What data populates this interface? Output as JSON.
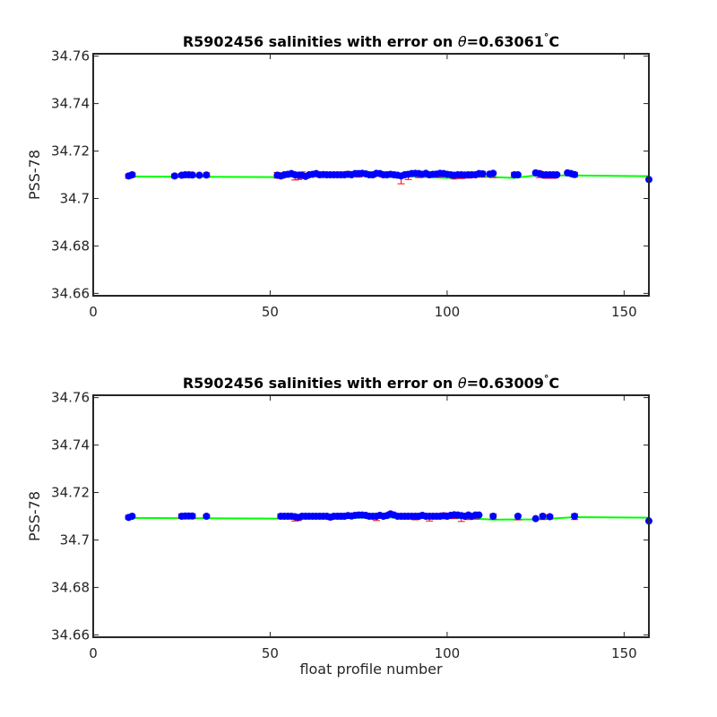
{
  "figure": {
    "xlabel": "float profile number",
    "ylabel": "PSS-78"
  },
  "colors": {
    "points": "#0000ff",
    "error_bars": "#ff0000",
    "trend_line": "#00ff00",
    "axes": "#262626"
  },
  "chart_data": [
    {
      "type": "scatter",
      "title_prefix": "R5902456 salinities with error on ",
      "theta_symbol": "θ",
      "theta_value": "=0.63061",
      "degree_symbol": "°",
      "unit": "C",
      "ylabel": "PSS-78",
      "xlabel": "",
      "xlim": [
        0,
        157
      ],
      "ylim": [
        34.659,
        34.761
      ],
      "xticks": [
        0,
        50,
        100,
        150
      ],
      "yticks": [
        34.66,
        34.68,
        34.7,
        34.72,
        34.74,
        34.76
      ],
      "ytick_labels": [
        "34.66",
        "34.68",
        "34.7",
        "34.72",
        "34.74",
        "34.76"
      ],
      "grid": false,
      "points": [
        [
          10,
          34.7095
        ],
        [
          11,
          34.71
        ],
        [
          23,
          34.7095
        ],
        [
          25,
          34.7098
        ],
        [
          26,
          34.71
        ],
        [
          27,
          34.71
        ],
        [
          28,
          34.7099
        ],
        [
          30,
          34.7098
        ],
        [
          32,
          34.7099
        ],
        [
          52,
          34.7098
        ],
        [
          53,
          34.7095
        ],
        [
          54,
          34.71
        ],
        [
          55,
          34.7102
        ],
        [
          56,
          34.7105
        ],
        [
          57,
          34.71
        ],
        [
          58,
          34.7098
        ],
        [
          59,
          34.7098
        ],
        [
          60,
          34.7093
        ],
        [
          61,
          34.71
        ],
        [
          62,
          34.7102
        ],
        [
          63,
          34.7105
        ],
        [
          64,
          34.71
        ],
        [
          65,
          34.7101
        ],
        [
          66,
          34.71
        ],
        [
          67,
          34.71
        ],
        [
          68,
          34.71
        ],
        [
          69,
          34.71
        ],
        [
          70,
          34.71
        ],
        [
          71,
          34.71
        ],
        [
          72,
          34.7102
        ],
        [
          73,
          34.71
        ],
        [
          74,
          34.7105
        ],
        [
          75,
          34.7105
        ],
        [
          76,
          34.7106
        ],
        [
          77,
          34.7104
        ],
        [
          78,
          34.71
        ],
        [
          79,
          34.71
        ],
        [
          80,
          34.7106
        ],
        [
          81,
          34.7105
        ],
        [
          82,
          34.71
        ],
        [
          83,
          34.71
        ],
        [
          84,
          34.7102
        ],
        [
          85,
          34.71
        ],
        [
          86,
          34.7098
        ],
        [
          87,
          34.7095
        ],
        [
          88,
          34.71
        ],
        [
          89,
          34.7102
        ],
        [
          90,
          34.7105
        ],
        [
          91,
          34.7106
        ],
        [
          92,
          34.7105
        ],
        [
          93,
          34.7102
        ],
        [
          94,
          34.7106
        ],
        [
          95,
          34.71
        ],
        [
          96,
          34.7102
        ],
        [
          97,
          34.7103
        ],
        [
          98,
          34.7106
        ],
        [
          99,
          34.7105
        ],
        [
          100,
          34.7102
        ],
        [
          101,
          34.71
        ],
        [
          102,
          34.7098
        ],
        [
          103,
          34.71
        ],
        [
          104,
          34.71
        ],
        [
          105,
          34.7099
        ],
        [
          106,
          34.71
        ],
        [
          107,
          34.71
        ],
        [
          108,
          34.71
        ],
        [
          109,
          34.7105
        ],
        [
          110,
          34.7104
        ],
        [
          112,
          34.7103
        ],
        [
          113,
          34.7106
        ],
        [
          119,
          34.71
        ],
        [
          120,
          34.71
        ],
        [
          125,
          34.7108
        ],
        [
          126,
          34.7105
        ],
        [
          127,
          34.71
        ],
        [
          128,
          34.71
        ],
        [
          129,
          34.71
        ],
        [
          130,
          34.71
        ],
        [
          131,
          34.71
        ],
        [
          134,
          34.7108
        ],
        [
          135,
          34.7105
        ],
        [
          136,
          34.7101
        ],
        [
          157,
          34.708
        ]
      ],
      "error_bars": [
        [
          10,
          34.7085,
          34.7103
        ],
        [
          11,
          34.709,
          34.7108
        ],
        [
          23,
          34.7087,
          34.7103
        ],
        [
          25,
          34.709,
          34.7106
        ],
        [
          28,
          34.709,
          34.7108
        ],
        [
          32,
          34.709,
          34.7108
        ],
        [
          52,
          34.7086,
          34.711
        ],
        [
          53,
          34.7085,
          34.7105
        ],
        [
          55,
          34.7094,
          34.711
        ],
        [
          57,
          34.7078,
          34.7102
        ],
        [
          58,
          34.708,
          34.7104
        ],
        [
          59,
          34.7084,
          34.7112
        ],
        [
          60,
          34.7085,
          34.7101
        ],
        [
          64,
          34.709,
          34.711
        ],
        [
          68,
          34.709,
          34.711
        ],
        [
          72,
          34.709,
          34.7114
        ],
        [
          75,
          34.709,
          34.7114
        ],
        [
          79,
          34.709,
          34.711
        ],
        [
          82,
          34.709,
          34.711
        ],
        [
          85,
          34.709,
          34.711
        ],
        [
          87,
          34.7062,
          34.71
        ],
        [
          89,
          34.708,
          34.7112
        ],
        [
          92,
          34.7088,
          34.7114
        ],
        [
          95,
          34.709,
          34.711
        ],
        [
          98,
          34.709,
          34.7114
        ],
        [
          102,
          34.7082,
          34.7106
        ],
        [
          104,
          34.7084,
          34.7108
        ],
        [
          106,
          34.7086,
          34.711
        ],
        [
          108,
          34.709,
          34.711
        ],
        [
          110,
          34.709,
          34.7114
        ],
        [
          113,
          34.7088,
          34.7112
        ],
        [
          119,
          34.709,
          34.711
        ],
        [
          126,
          34.7088,
          34.7116
        ],
        [
          128,
          34.7085,
          34.7105
        ],
        [
          130,
          34.7085,
          34.7105
        ],
        [
          136,
          34.709,
          34.711
        ]
      ],
      "trend": [
        [
          10,
          34.7093
        ],
        [
          52,
          34.709
        ],
        [
          60,
          34.7094
        ],
        [
          80,
          34.7096
        ],
        [
          90,
          34.7093
        ],
        [
          100,
          34.7087
        ],
        [
          110,
          34.7092
        ],
        [
          119,
          34.7087
        ],
        [
          125,
          34.7097
        ],
        [
          136,
          34.7097
        ],
        [
          157,
          34.7094
        ]
      ]
    },
    {
      "type": "scatter",
      "title_prefix": "R5902456 salinities with error on ",
      "theta_symbol": "θ",
      "theta_value": "=0.63009",
      "degree_symbol": "°",
      "unit": "C",
      "ylabel": "PSS-78",
      "xlabel": "float profile number",
      "xlim": [
        0,
        157
      ],
      "ylim": [
        34.659,
        34.761
      ],
      "xticks": [
        0,
        50,
        100,
        150
      ],
      "yticks": [
        34.66,
        34.68,
        34.7,
        34.72,
        34.74,
        34.76
      ],
      "ytick_labels": [
        "34.66",
        "34.68",
        "34.7",
        "34.72",
        "34.74",
        "34.76"
      ],
      "grid": false,
      "points": [
        [
          10,
          34.7095
        ],
        [
          11,
          34.71
        ],
        [
          25,
          34.71
        ],
        [
          26,
          34.7101
        ],
        [
          27,
          34.7101
        ],
        [
          28,
          34.7101
        ],
        [
          32,
          34.71
        ],
        [
          53,
          34.71
        ],
        [
          54,
          34.71
        ],
        [
          55,
          34.71
        ],
        [
          56,
          34.71
        ],
        [
          57,
          34.7098
        ],
        [
          58,
          34.7095
        ],
        [
          59,
          34.71
        ],
        [
          60,
          34.71
        ],
        [
          61,
          34.71
        ],
        [
          62,
          34.71
        ],
        [
          63,
          34.71
        ],
        [
          64,
          34.71
        ],
        [
          65,
          34.71
        ],
        [
          66,
          34.71
        ],
        [
          67,
          34.7096
        ],
        [
          68,
          34.71
        ],
        [
          69,
          34.71
        ],
        [
          70,
          34.71
        ],
        [
          71,
          34.71
        ],
        [
          72,
          34.7103
        ],
        [
          73,
          34.7101
        ],
        [
          74,
          34.7104
        ],
        [
          75,
          34.7105
        ],
        [
          76,
          34.7105
        ],
        [
          77,
          34.7104
        ],
        [
          78,
          34.71
        ],
        [
          79,
          34.71
        ],
        [
          80,
          34.71
        ],
        [
          81,
          34.7104
        ],
        [
          82,
          34.71
        ],
        [
          83,
          34.7103
        ],
        [
          84,
          34.711
        ],
        [
          85,
          34.7105
        ],
        [
          86,
          34.71
        ],
        [
          87,
          34.71
        ],
        [
          88,
          34.71
        ],
        [
          89,
          34.71
        ],
        [
          90,
          34.71
        ],
        [
          91,
          34.71
        ],
        [
          92,
          34.71
        ],
        [
          93,
          34.7104
        ],
        [
          94,
          34.71
        ],
        [
          95,
          34.71
        ],
        [
          96,
          34.71
        ],
        [
          97,
          34.71
        ],
        [
          98,
          34.71
        ],
        [
          99,
          34.7102
        ],
        [
          100,
          34.71
        ],
        [
          101,
          34.7104
        ],
        [
          102,
          34.7106
        ],
        [
          103,
          34.7105
        ],
        [
          104,
          34.7103
        ],
        [
          105,
          34.71
        ],
        [
          106,
          34.7105
        ],
        [
          107,
          34.71
        ],
        [
          108,
          34.7105
        ],
        [
          109,
          34.7105
        ],
        [
          113,
          34.71
        ],
        [
          120,
          34.71
        ],
        [
          125,
          34.709
        ],
        [
          127,
          34.71
        ],
        [
          129,
          34.7098
        ],
        [
          136,
          34.71
        ],
        [
          157,
          34.708
        ]
      ],
      "error_bars": [
        [
          10,
          34.7088,
          34.7104
        ],
        [
          25,
          34.709,
          34.711
        ],
        [
          28,
          34.709,
          34.711
        ],
        [
          32,
          34.7094,
          34.7106
        ],
        [
          53,
          34.709,
          34.711
        ],
        [
          55,
          34.709,
          34.711
        ],
        [
          57,
          34.708,
          34.7104
        ],
        [
          58,
          34.7082,
          34.7108
        ],
        [
          60,
          34.709,
          34.711
        ],
        [
          64,
          34.709,
          34.711
        ],
        [
          67,
          34.7086,
          34.7106
        ],
        [
          70,
          34.7088,
          34.7112
        ],
        [
          74,
          34.7094,
          34.7114
        ],
        [
          78,
          34.709,
          34.711
        ],
        [
          80,
          34.7082,
          34.7106
        ],
        [
          84,
          34.7096,
          34.7118
        ],
        [
          88,
          34.7088,
          34.7108
        ],
        [
          91,
          34.7085,
          34.711
        ],
        [
          95,
          34.708,
          34.7108
        ],
        [
          99,
          34.709,
          34.7114
        ],
        [
          102,
          34.709,
          34.7116
        ],
        [
          104,
          34.7078,
          34.7104
        ],
        [
          106,
          34.7086,
          34.711
        ],
        [
          108,
          34.7088,
          34.7112
        ],
        [
          113,
          34.7088,
          34.711
        ],
        [
          120,
          34.7085,
          34.7105
        ],
        [
          127,
          34.7086,
          34.7108
        ],
        [
          129,
          34.7088,
          34.7106
        ],
        [
          136,
          34.7086,
          34.711
        ]
      ],
      "trend": [
        [
          10,
          34.7093
        ],
        [
          53,
          34.709
        ],
        [
          70,
          34.7093
        ],
        [
          85,
          34.7095
        ],
        [
          95,
          34.7091
        ],
        [
          105,
          34.7092
        ],
        [
          113,
          34.7086
        ],
        [
          125,
          34.7087
        ],
        [
          136,
          34.7096
        ],
        [
          157,
          34.7094
        ]
      ]
    }
  ]
}
